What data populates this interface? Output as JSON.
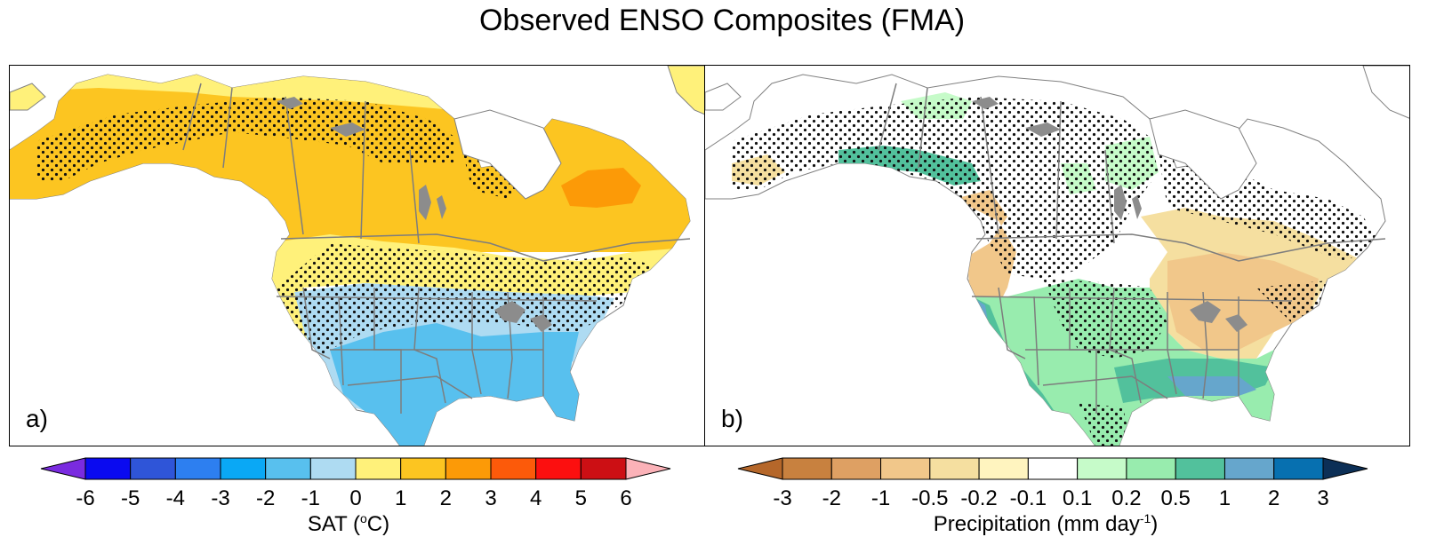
{
  "title": "Observed ENSO Composites (FMA)",
  "panels": [
    {
      "label": "a)",
      "variable": "SAT"
    },
    {
      "label": "b)",
      "variable": "Precipitation"
    }
  ],
  "sat_colorbar": {
    "ticks": [
      "-6",
      "-5",
      "-4",
      "-3",
      "-2",
      "-1",
      "0",
      "1",
      "2",
      "3",
      "4",
      "5",
      "6"
    ],
    "label_prefix": "SAT (",
    "label_sup": "o",
    "label_suffix": "C)",
    "colors": [
      "#7a2be0",
      "#0a0af0",
      "#2f55d8",
      "#2d7ff0",
      "#0aa8f5",
      "#58c0ee",
      "#aedbf2",
      "#fff17a",
      "#fcc521",
      "#fc9a07",
      "#fc5a0a",
      "#fc0f0f",
      "#cc0f14",
      "#fbb2b8"
    ]
  },
  "precip_colorbar": {
    "ticks": [
      "-3",
      "-2",
      "-1",
      "-0.5",
      "-0.2",
      "-0.1",
      "0.1",
      "0.2",
      "0.5",
      "1",
      "2",
      "3"
    ],
    "label_prefix": "Precipitation (mm day",
    "label_sup": "-1",
    "label_suffix": ")",
    "colors": [
      "#b5672a",
      "#c8813f",
      "#dea063",
      "#f1c78a",
      "#f5dfa0",
      "#fff4bf",
      "#ffffff",
      "#c6fbc9",
      "#98ecae",
      "#52c19c",
      "#66a6cc",
      "#0770b0",
      "#0c2f56"
    ]
  },
  "map_colors": {
    "land": "#ffffff",
    "warm": "#fcc521",
    "warm_edge": "#fff17a",
    "hot": "#fc9a07",
    "cool_light": "#aedbf2",
    "cool": "#58c0ee",
    "dry_light": "#f5dfa0",
    "dry": "#f1c78a",
    "wet_light": "#c6fbc9",
    "wet": "#98ecae",
    "wet_strong": "#52c19c",
    "wet_blue": "#66a6cc",
    "lakes": "#8c8c8c",
    "borders": "#7d7d7d"
  }
}
